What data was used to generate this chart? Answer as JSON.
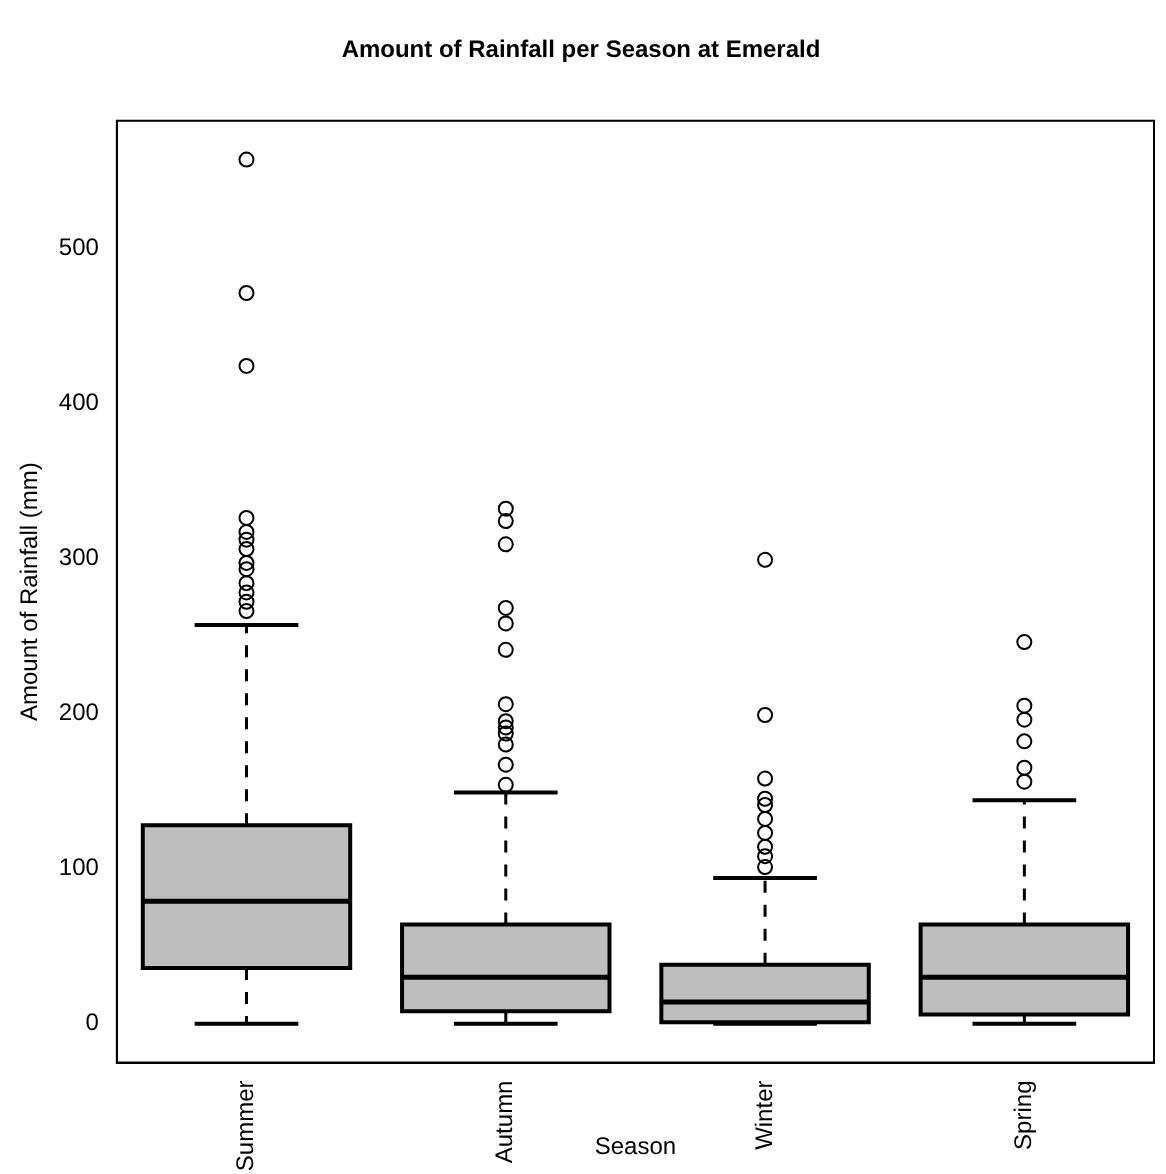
{
  "chart_data": {
    "type": "box",
    "title": "Amount of Rainfall per Season at Emerald",
    "xlabel": "Season",
    "ylabel": "Amount of Rainfall (mm)",
    "categories": [
      "Summer",
      "Autumn",
      "Winter",
      "Spring"
    ],
    "color": "#bebebe",
    "boxes": [
      {
        "low": 0,
        "q1": 36,
        "median": 79,
        "q3": 128,
        "high": 257,
        "outliers": [
          557,
          471,
          424,
          326,
          317,
          312,
          306,
          297,
          293,
          284,
          278,
          272,
          266
        ]
      },
      {
        "low": 0,
        "q1": 8,
        "median": 30,
        "q3": 64,
        "high": 149,
        "outliers": [
          332,
          324,
          309,
          268,
          258,
          241,
          206,
          195,
          191,
          187,
          180,
          167,
          154
        ]
      },
      {
        "low": 0,
        "q1": 1,
        "median": 14,
        "q3": 38,
        "high": 94,
        "outliers": [
          299,
          199,
          158,
          145,
          141,
          132,
          123,
          114,
          108,
          101
        ]
      },
      {
        "low": 0,
        "q1": 6,
        "median": 30,
        "q3": 64,
        "high": 144,
        "outliers": [
          246,
          205,
          196,
          182,
          165,
          156
        ]
      }
    ],
    "ylim": [
      -25,
      582
    ],
    "yticks": [
      0,
      100,
      200,
      300,
      400,
      500
    ],
    "grid": false,
    "legend": false
  }
}
